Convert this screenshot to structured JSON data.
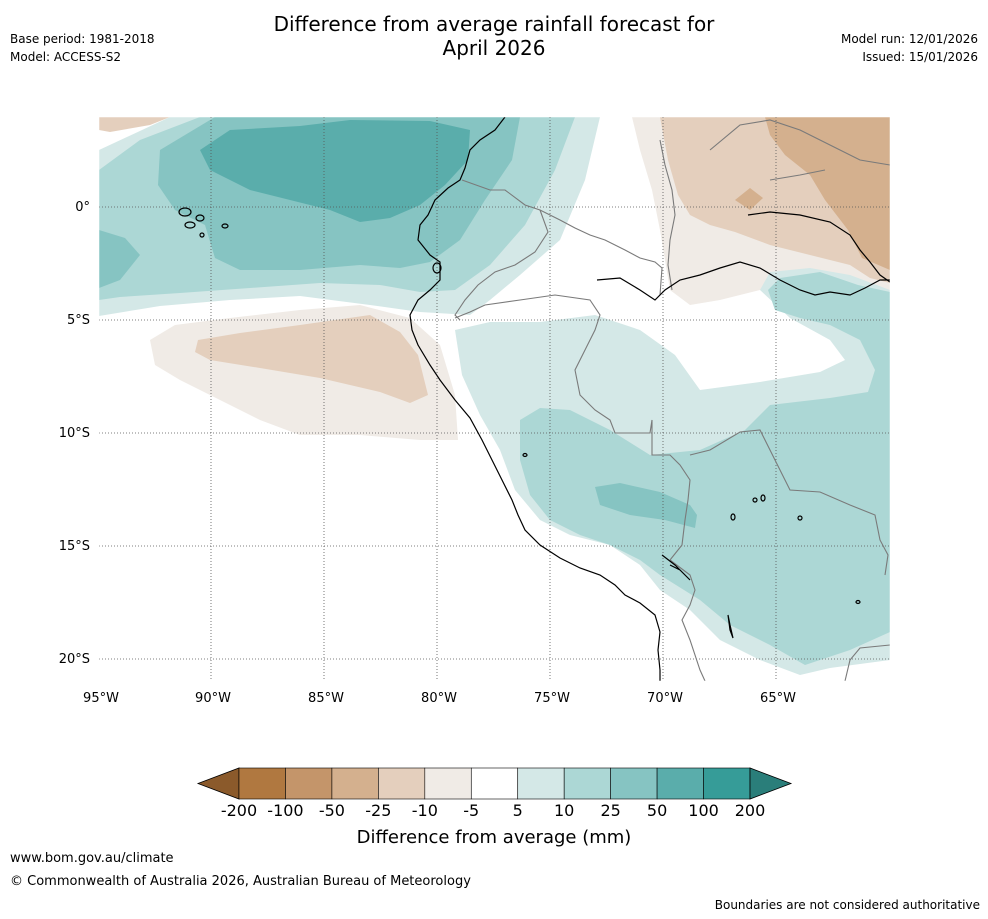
{
  "header": {
    "title_line1": "Difference from average rainfall forecast for",
    "title_line2": "April 2026",
    "base_period": "Base period: 1981-2018",
    "model": "Model: ACCESS-S2",
    "model_run": "Model run: 12/01/2026",
    "issued": "Issued: 15/01/2026"
  },
  "map": {
    "lat_labels": [
      "0°",
      "5°S",
      "10°S",
      "15°S",
      "20°S"
    ],
    "lon_labels": [
      "95°W",
      "90°W",
      "85°W",
      "80°W",
      "75°W",
      "70°W",
      "65°W"
    ]
  },
  "legend": {
    "title": "Difference from average (mm)",
    "tick_labels": [
      "-200",
      "-100",
      "-50",
      "-25",
      "-10",
      "-5",
      "5",
      "10",
      "25",
      "50",
      "100",
      "200"
    ],
    "colors": [
      "#8b5a2b",
      "#b07840",
      "#c4956a",
      "#d4b08e",
      "#e4cfbd",
      "#f0ebe6",
      "#ffffff",
      "#d4e8e7",
      "#acd7d5",
      "#86c4c2",
      "#5aadab",
      "#369c98",
      "#2a7e7a"
    ]
  },
  "footer": {
    "url": "www.bom.gov.au/climate",
    "copyright": "© Commonwealth of Australia 2026, Australian Bureau of Meteorology",
    "disclaimer": "Boundaries are not considered authoritative"
  }
}
